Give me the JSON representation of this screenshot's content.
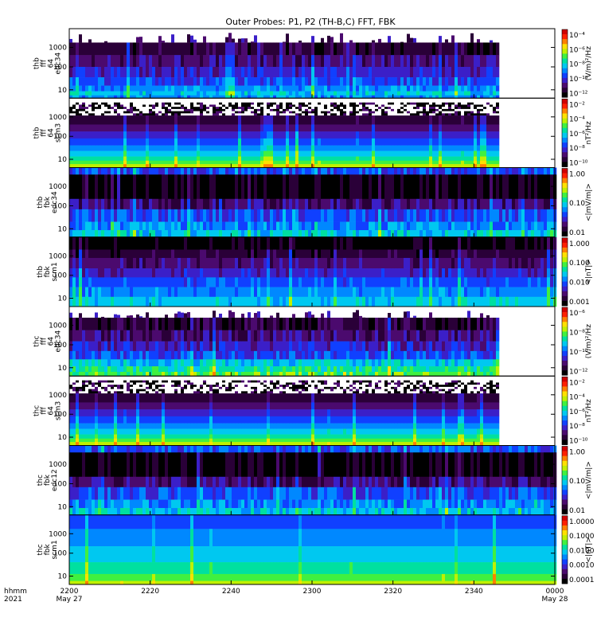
{
  "title": "Outer Probes: P1, P2 (TH-B,C) FFT, FBK",
  "chart_data": {
    "type": "heatmap",
    "title": "Outer Probes: P1, P2 (TH-B,C) FFT, FBK",
    "time_axis": {
      "label_line1": "hhmm",
      "label_line2": "2021",
      "ticks": [
        {
          "value": "2200",
          "sub": "May 27"
        },
        {
          "value": "2220",
          "sub": ""
        },
        {
          "value": "2240",
          "sub": ""
        },
        {
          "value": "2300",
          "sub": ""
        },
        {
          "value": "2320",
          "sub": ""
        },
        {
          "value": "2340",
          "sub": ""
        },
        {
          "value": "0000",
          "sub": "May 28"
        }
      ],
      "data_end": "2345"
    },
    "panels": [
      {
        "probe": "thb",
        "row2": "fff",
        "row3": "64",
        "row4": "edc34",
        "kind": "fft_e",
        "yticks": [
          "1000",
          "100",
          "10"
        ],
        "cbar_label": "(V/m)²/Hz",
        "cbar_ticks": [
          "10⁻⁴",
          "10⁻⁶",
          "10⁻⁸",
          "10⁻¹⁰",
          "10⁻¹²"
        ]
      },
      {
        "probe": "thb",
        "row2": "fff",
        "row3": "64",
        "row4": "scm3",
        "kind": "fft_b",
        "yticks": [
          "1000",
          "100",
          "10"
        ],
        "cbar_label": "nT²/Hz",
        "cbar_ticks": [
          "10⁻²",
          "10⁻⁴",
          "10⁻⁶",
          "10⁻⁸",
          "10⁻¹⁰"
        ]
      },
      {
        "probe": "thb",
        "row2": "fbk",
        "row3": "",
        "row4": "edc34",
        "kind": "fbk_e",
        "yticks": [
          "1000",
          "100",
          "10"
        ],
        "cbar_label": "<|mV/m|>",
        "cbar_ticks": [
          "1.00",
          "0.10",
          "0.01"
        ]
      },
      {
        "probe": "thb",
        "row2": "fbk",
        "row3": "",
        "row4": "scm1",
        "kind": "fbk_b",
        "yticks": [
          "1000",
          "100",
          "10"
        ],
        "cbar_label": "<|nT|>",
        "cbar_ticks": [
          "1.000",
          "0.100",
          "0.010",
          "0.001"
        ]
      },
      {
        "probe": "thc",
        "row2": "fff",
        "row3": "64",
        "row4": "edc34",
        "kind": "fft_e2",
        "yticks": [
          "1000",
          "100",
          "10"
        ],
        "cbar_label": "(V/m)²/Hz",
        "cbar_ticks": [
          "10⁻⁶",
          "10⁻⁸",
          "10⁻¹⁰",
          "10⁻¹²"
        ]
      },
      {
        "probe": "thc",
        "row2": "fff",
        "row3": "64",
        "row4": "scm3",
        "kind": "fft_b",
        "yticks": [
          "1000",
          "100",
          "10"
        ],
        "cbar_label": "nT²/Hz",
        "cbar_ticks": [
          "10⁻²",
          "10⁻⁴",
          "10⁻⁶",
          "10⁻⁸",
          "10⁻¹⁰"
        ]
      },
      {
        "probe": "thc",
        "row2": "fbk",
        "row3": "",
        "row4": "edc12",
        "kind": "fbk_e",
        "yticks": [
          "1000",
          "100",
          "10"
        ],
        "cbar_label": "<|mV/m|>",
        "cbar_ticks": [
          "1.00",
          "0.10",
          "0.01"
        ]
      },
      {
        "probe": "thc",
        "row2": "fbk",
        "row3": "",
        "row4": "scm1",
        "kind": "fbk_b2",
        "yticks": [
          "1000",
          "100",
          "10"
        ],
        "cbar_label": "<|nT|>",
        "cbar_ticks": [
          "1.0000",
          "0.1000",
          "0.0100",
          "0.0010",
          "0.0001"
        ]
      }
    ],
    "colormap": [
      "#000000",
      "#2a0038",
      "#4b0a6e",
      "#3b1fc8",
      "#1040ff",
      "#0088ff",
      "#00c8f0",
      "#00e0a0",
      "#40f040",
      "#c0f000",
      "#ffe000",
      "#ff8000",
      "#ff2000",
      "#d00000"
    ]
  }
}
